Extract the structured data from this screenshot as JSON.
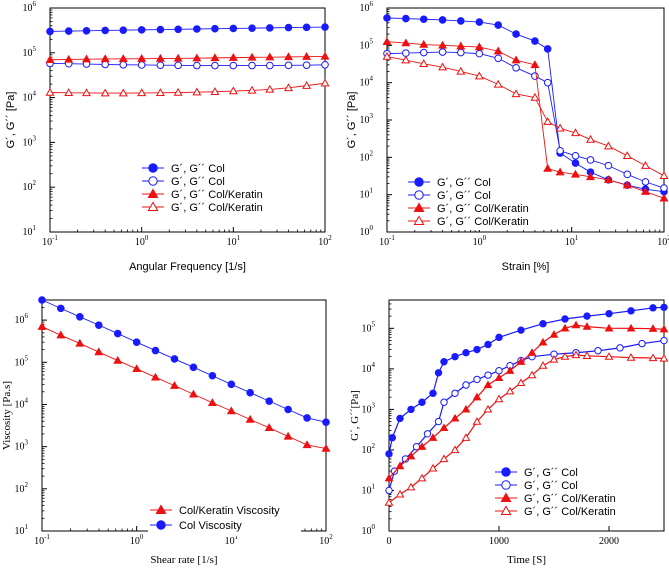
{
  "chart_data": [
    {
      "id": "p1",
      "type": "scatter",
      "title": "",
      "xlabel": "Angular Frequency [1/s]",
      "ylabel": "G´, G´´ [Pa]",
      "xscale": "log",
      "yscale": "log",
      "xlim": [
        0.1,
        100
      ],
      "ylim": [
        10,
        1000000
      ],
      "xticks": [
        {
          "v": 0.1,
          "label": "10"
        },
        {
          "v": 1,
          "label": "10"
        },
        {
          "v": 10,
          "label": "10"
        },
        {
          "v": 100,
          "label": "10"
        }
      ],
      "xtick_exp": [
        "-1",
        "0",
        "1",
        "2"
      ],
      "yticks": [
        {
          "v": 10,
          "label": "10"
        },
        {
          "v": 100,
          "label": "10"
        },
        {
          "v": 1000,
          "label": "10"
        },
        {
          "v": 10000,
          "label": "10"
        },
        {
          "v": 100000,
          "label": "10"
        },
        {
          "v": 1000000,
          "label": "10"
        }
      ],
      "ytick_exp": [
        "1",
        "2",
        "3",
        "4",
        "5",
        "6"
      ],
      "legend_position": "center-left",
      "series": [
        {
          "name": "G´, G´´ Col",
          "color": "#1a1aff",
          "marker": "circle",
          "filled": true,
          "x": [
            0.1,
            0.16,
            0.25,
            0.4,
            0.63,
            1,
            1.6,
            2.5,
            4,
            6.3,
            10,
            16,
            25,
            40,
            63,
            100
          ],
          "y": [
            300000,
            305000,
            310000,
            315000,
            320000,
            325000,
            330000,
            335000,
            340000,
            345000,
            350000,
            355000,
            360000,
            365000,
            370000,
            375000
          ]
        },
        {
          "name": "G´, G´´ Col",
          "color": "#1a1aff",
          "marker": "circle",
          "filled": false,
          "x": [
            0.1,
            0.16,
            0.25,
            0.4,
            0.63,
            1,
            1.6,
            2.5,
            4,
            6.3,
            10,
            16,
            25,
            40,
            63,
            100
          ],
          "y": [
            58000,
            57000,
            56000,
            55000,
            54000,
            53500,
            53000,
            52500,
            52000,
            52000,
            52000,
            52000,
            52000,
            52500,
            53000,
            54000
          ]
        },
        {
          "name": "G´, G´´ Col/Keratin",
          "color": "#ee1111",
          "marker": "triangle",
          "filled": true,
          "x": [
            0.1,
            0.16,
            0.25,
            0.4,
            0.63,
            1,
            1.6,
            2.5,
            4,
            6.3,
            10,
            16,
            25,
            40,
            63,
            100
          ],
          "y": [
            70000,
            71000,
            72000,
            73000,
            73500,
            74000,
            74500,
            75000,
            76000,
            77000,
            78000,
            79000,
            80000,
            81000,
            82000,
            83000
          ]
        },
        {
          "name": "G´, G´´ Col/Keratin",
          "color": "#ee1111",
          "marker": "triangle",
          "filled": false,
          "x": [
            0.1,
            0.16,
            0.25,
            0.4,
            0.63,
            1,
            1.6,
            2.5,
            4,
            6.3,
            10,
            16,
            25,
            40,
            63,
            100
          ],
          "y": [
            13000,
            12800,
            12700,
            12600,
            12600,
            12700,
            12800,
            13000,
            13200,
            13500,
            14000,
            14500,
            15200,
            16500,
            18500,
            21000
          ]
        }
      ]
    },
    {
      "id": "p2",
      "type": "line",
      "title": "",
      "xlabel": "Strain [%]",
      "ylabel": "G´, G´´ [Pa]",
      "xscale": "log",
      "yscale": "log",
      "xlim": [
        0.1,
        100
      ],
      "ylim": [
        1,
        1000000
      ],
      "xticks": [
        {
          "v": 0.1,
          "label": "10"
        },
        {
          "v": 1,
          "label": "10"
        },
        {
          "v": 10,
          "label": "10"
        },
        {
          "v": 100,
          "label": "10"
        }
      ],
      "xtick_exp": [
        "-1",
        "0",
        "1",
        "2"
      ],
      "yticks": [
        {
          "v": 1,
          "label": "10"
        },
        {
          "v": 10,
          "label": "10"
        },
        {
          "v": 100,
          "label": "10"
        },
        {
          "v": 1000,
          "label": "10"
        },
        {
          "v": 10000,
          "label": "10"
        },
        {
          "v": 100000,
          "label": "10"
        },
        {
          "v": 1000000,
          "label": "10"
        }
      ],
      "ytick_exp": [
        "0",
        "1",
        "2",
        "3",
        "4",
        "5",
        "6"
      ],
      "legend_position": "bottom-left",
      "series": [
        {
          "name": "G´, G´´ Col",
          "color": "#1a1aff",
          "marker": "circle",
          "filled": true,
          "x": [
            0.1,
            0.16,
            0.25,
            0.4,
            0.63,
            1,
            1.6,
            2.5,
            4,
            5.5,
            7.5,
            11,
            16,
            25,
            40,
            63,
            100
          ],
          "y": [
            540000,
            520000,
            500000,
            480000,
            450000,
            420000,
            350000,
            200000,
            130000,
            80000,
            130,
            70,
            40,
            25,
            18,
            14,
            12
          ]
        },
        {
          "name": "G´, G´´ Col",
          "color": "#1a1aff",
          "marker": "circle",
          "filled": false,
          "x": [
            0.1,
            0.16,
            0.25,
            0.4,
            0.63,
            1,
            1.6,
            2.5,
            4,
            5.5,
            7.5,
            11,
            16,
            25,
            40,
            63,
            100
          ],
          "y": [
            60000,
            62000,
            64000,
            66000,
            64000,
            60000,
            45000,
            25000,
            15000,
            10000,
            150,
            110,
            85,
            60,
            35,
            22,
            15
          ]
        },
        {
          "name": "G´, G´´ Col/Keratin",
          "color": "#ee1111",
          "marker": "triangle",
          "filled": true,
          "x": [
            0.1,
            0.16,
            0.25,
            0.4,
            0.63,
            1,
            1.6,
            2.5,
            4,
            5.5,
            7.5,
            11,
            16,
            25,
            40,
            63,
            100
          ],
          "y": [
            125000,
            115000,
            105000,
            100000,
            95000,
            90000,
            70000,
            40000,
            30000,
            50,
            40,
            35,
            30,
            25,
            18,
            12,
            8
          ]
        },
        {
          "name": "G´, G´´ Col/Keratin",
          "color": "#ee1111",
          "marker": "triangle",
          "filled": false,
          "x": [
            0.1,
            0.16,
            0.25,
            0.4,
            0.63,
            1,
            1.6,
            2.5,
            4,
            5.5,
            7.5,
            11,
            16,
            25,
            40,
            63,
            100
          ],
          "y": [
            50000,
            40000,
            32000,
            26000,
            20000,
            15000,
            9000,
            5000,
            4000,
            900,
            600,
            450,
            300,
            200,
            110,
            60,
            32
          ]
        }
      ]
    },
    {
      "id": "p3",
      "type": "scatter",
      "title": "",
      "xlabel": "Shear rate [1/s]",
      "ylabel": "Viscosity [Pa.s]",
      "xscale": "log",
      "yscale": "log",
      "xlim": [
        0.1,
        100
      ],
      "ylim": [
        10,
        3000000
      ],
      "xticks": [
        {
          "v": 0.1,
          "label": "10"
        },
        {
          "v": 1,
          "label": "10"
        },
        {
          "v": 10,
          "label": "10"
        },
        {
          "v": 100,
          "label": "10"
        }
      ],
      "xtick_exp": [
        "-1",
        "0",
        "1",
        "2"
      ],
      "yticks": [
        {
          "v": 10,
          "label": "10"
        },
        {
          "v": 100,
          "label": "10"
        },
        {
          "v": 1000,
          "label": "10"
        },
        {
          "v": 10000,
          "label": "10"
        },
        {
          "v": 100000,
          "label": "10"
        },
        {
          "v": 1000000,
          "label": "10"
        }
      ],
      "ytick_exp": [
        "1",
        "2",
        "3",
        "4",
        "5",
        "6"
      ],
      "legend_position": "bottom-center",
      "series": [
        {
          "name": "Col/Keratin Viscosity",
          "color": "#ee1111",
          "marker": "triangle",
          "filled": true,
          "x": [
            0.1,
            0.158,
            0.251,
            0.398,
            0.631,
            1,
            1.58,
            2.51,
            3.98,
            6.31,
            10,
            15.8,
            25.1,
            39.8,
            63.1,
            100
          ],
          "y": [
            700000,
            440000,
            280000,
            175000,
            110000,
            70000,
            44000,
            28000,
            17500,
            11000,
            7000,
            4400,
            2800,
            1750,
            1100,
            900
          ]
        },
        {
          "name": "Col Viscosity",
          "color": "#1a1aff",
          "marker": "circle",
          "filled": true,
          "x": [
            0.1,
            0.158,
            0.251,
            0.398,
            0.631,
            1,
            1.58,
            2.51,
            3.98,
            6.31,
            10,
            15.8,
            25.1,
            39.8,
            63.1,
            100
          ],
          "y": [
            3000000,
            1900000,
            1200000,
            760000,
            480000,
            300000,
            190000,
            120000,
            76000,
            48000,
            30000,
            19000,
            12000,
            7600,
            4800,
            3800
          ]
        }
      ]
    },
    {
      "id": "p4",
      "type": "scatter",
      "title": "",
      "xlabel": "Time [S]",
      "ylabel": "G´, G´´[Pa]",
      "xscale": "linear",
      "yscale": "log",
      "xlim": [
        0,
        2500
      ],
      "ylim": [
        1,
        500000
      ],
      "xticks": [
        {
          "v": 0,
          "label": "0"
        },
        {
          "v": 1000,
          "label": "1000"
        },
        {
          "v": 2000,
          "label": "2000"
        }
      ],
      "xtick_exp": [
        "",
        "",
        ""
      ],
      "yticks": [
        {
          "v": 1,
          "label": "10"
        },
        {
          "v": 10,
          "label": "10"
        },
        {
          "v": 100,
          "label": "10"
        },
        {
          "v": 1000,
          "label": "10"
        },
        {
          "v": 10000,
          "label": "10"
        },
        {
          "v": 100000,
          "label": "10"
        }
      ],
      "ytick_exp": [
        "0",
        "1",
        "2",
        "3",
        "4",
        "5"
      ],
      "legend_position": "bottom-right",
      "series": [
        {
          "name": "G´, G´´ Col",
          "color": "#1a1aff",
          "marker": "circle",
          "filled": true,
          "x": [
            0,
            30,
            100,
            200,
            300,
            400,
            450,
            500,
            600,
            700,
            800,
            900,
            1000,
            1200,
            1400,
            1600,
            1800,
            2000,
            2200,
            2400,
            2500
          ],
          "y": [
            80,
            200,
            600,
            1000,
            1500,
            2500,
            8000,
            15000,
            20000,
            25000,
            30000,
            40000,
            60000,
            90000,
            130000,
            170000,
            200000,
            230000,
            270000,
            320000,
            330000
          ]
        },
        {
          "name": "G´, G´´ Col",
          "color": "#1a1aff",
          "marker": "circle",
          "filled": false,
          "x": [
            0,
            50,
            150,
            250,
            350,
            450,
            500,
            600,
            700,
            800,
            900,
            1000,
            1100,
            1200,
            1300,
            1500,
            1700,
            1900,
            2100,
            2300,
            2500
          ],
          "y": [
            10,
            30,
            60,
            120,
            250,
            500,
            1500,
            2500,
            4000,
            5500,
            7000,
            9000,
            12000,
            16000,
            20000,
            23000,
            25000,
            28000,
            33000,
            42000,
            50000
          ]
        },
        {
          "name": "G´, G´´ Col/Keratin",
          "color": "#ee1111",
          "marker": "triangle",
          "filled": true,
          "x": [
            0,
            100,
            200,
            300,
            400,
            500,
            600,
            700,
            800,
            900,
            1000,
            1100,
            1200,
            1300,
            1400,
            1500,
            1600,
            1700,
            1800,
            2000,
            2200,
            2400,
            2500
          ],
          "y": [
            20,
            40,
            70,
            120,
            200,
            350,
            600,
            1000,
            2000,
            4000,
            6000,
            9000,
            15000,
            25000,
            45000,
            70000,
            100000,
            120000,
            110000,
            100000,
            100000,
            98000,
            95000
          ]
        },
        {
          "name": "G´, G´´ Col/Keratin",
          "color": "#ee1111",
          "marker": "triangle",
          "filled": false,
          "x": [
            0,
            100,
            200,
            300,
            400,
            500,
            600,
            700,
            800,
            900,
            1000,
            1100,
            1200,
            1300,
            1400,
            1500,
            1600,
            1700,
            1800,
            2000,
            2200,
            2400,
            2500
          ],
          "y": [
            5,
            8,
            12,
            20,
            35,
            60,
            100,
            200,
            500,
            1000,
            1800,
            2800,
            4500,
            7000,
            12000,
            17000,
            20000,
            22000,
            21000,
            20000,
            19000,
            18500,
            18000
          ]
        }
      ]
    }
  ]
}
